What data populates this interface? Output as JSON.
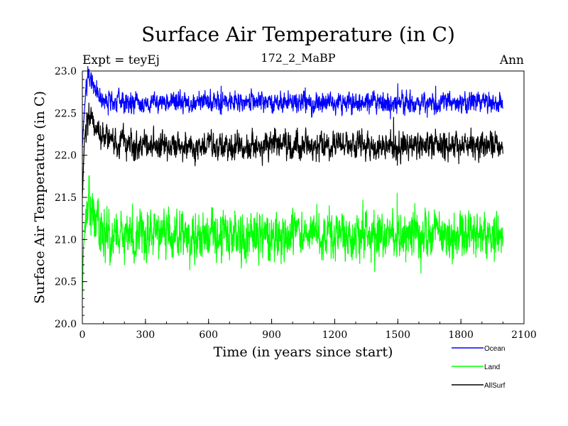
{
  "chart_data": {
    "type": "line",
    "title": "Surface Air Temperature (in C)",
    "subtitle_left": "Expt = teyEj",
    "subtitle_center": "172_2_MaBP",
    "subtitle_right": "Ann",
    "xlabel": "Time (in years since start)",
    "ylabel": "Surface Air Temperature (in C)",
    "xlim": [
      0,
      2100
    ],
    "ylim": [
      20.0,
      23.0
    ],
    "x_ticks": [
      0,
      300,
      600,
      900,
      1200,
      1500,
      1800,
      2100
    ],
    "x_tick_labels": [
      "0",
      "300",
      "600",
      "900",
      "1200",
      "1500",
      "1800",
      "2100"
    ],
    "y_ticks": [
      20.0,
      20.5,
      21.0,
      21.5,
      22.0,
      22.5,
      23.0
    ],
    "y_tick_labels": [
      "20.0",
      "20.5",
      "21.0",
      "21.5",
      "22.0",
      "22.5",
      "23.0"
    ],
    "x_minor_step": 100,
    "y_minor_step": 0.1,
    "years": 2000,
    "series": [
      {
        "name": "Ocean",
        "color": "#0000ff",
        "anchors": [
          [
            0,
            22.1
          ],
          [
            10,
            22.55
          ],
          [
            20,
            22.85
          ],
          [
            30,
            22.95
          ],
          [
            40,
            22.9
          ],
          [
            60,
            22.8
          ],
          [
            80,
            22.7
          ],
          [
            120,
            22.65
          ],
          [
            200,
            22.63
          ],
          [
            2000,
            22.62
          ]
        ],
        "noise": 0.06,
        "spikes": [
          [
            660,
            22.82
          ],
          [
            1060,
            22.8
          ],
          [
            1680,
            22.82
          ],
          [
            1500,
            22.85
          ],
          [
            1465,
            22.43
          ],
          [
            1640,
            22.45
          ]
        ]
      },
      {
        "name": "Land",
        "color": "#00ff00",
        "anchors": [
          [
            0,
            20.3
          ],
          [
            5,
            20.9
          ],
          [
            15,
            21.3
          ],
          [
            30,
            21.5
          ],
          [
            50,
            21.3
          ],
          [
            80,
            21.15
          ],
          [
            150,
            21.05
          ],
          [
            2000,
            21.05
          ]
        ],
        "noise": 0.14,
        "spikes": [
          [
            1497,
            21.55
          ],
          [
            200,
            20.7
          ],
          [
            1610,
            20.6
          ],
          [
            1390,
            20.62
          ]
        ]
      },
      {
        "name": "AllSurf",
        "color": "#000000",
        "anchors": [
          [
            0,
            21.5
          ],
          [
            10,
            22.2
          ],
          [
            25,
            22.45
          ],
          [
            40,
            22.45
          ],
          [
            70,
            22.25
          ],
          [
            120,
            22.18
          ],
          [
            200,
            22.12
          ],
          [
            2000,
            22.12
          ]
        ],
        "noise": 0.08,
        "spikes": [
          [
            1480,
            22.45
          ],
          [
            210,
            21.93
          ],
          [
            1950,
            21.97
          ]
        ]
      }
    ],
    "legend_position": "bottom-right"
  }
}
